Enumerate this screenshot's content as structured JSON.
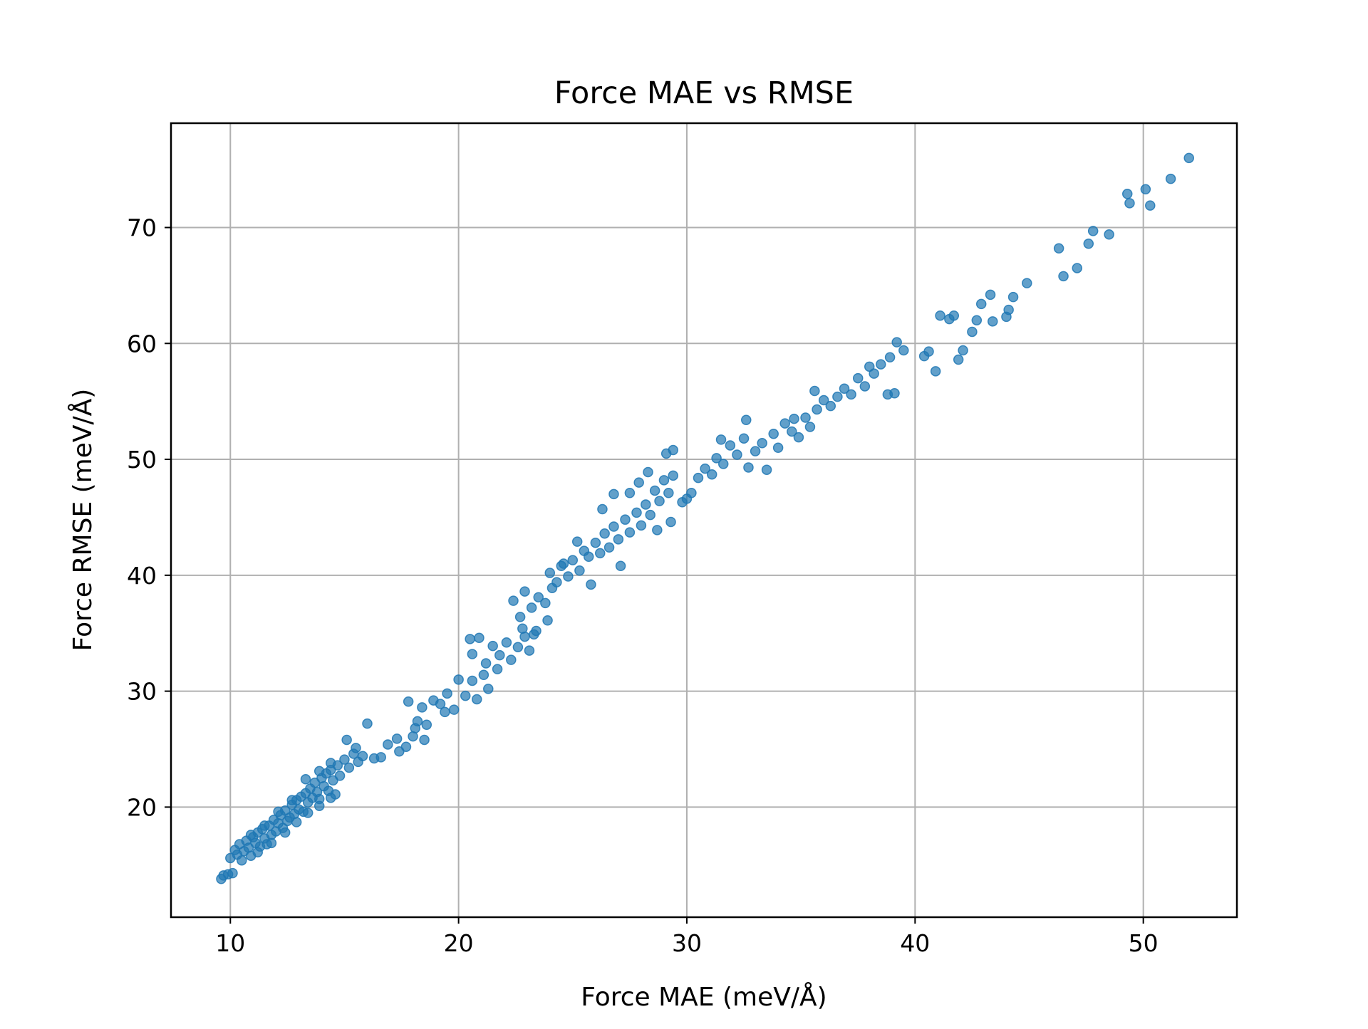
{
  "chart_data": {
    "type": "scatter",
    "title": "Force MAE vs RMSE",
    "xlabel": "Force MAE (meV/Å)",
    "ylabel": "Force RMSE (meV/Å)",
    "xlim": [
      7.4,
      54.1
    ],
    "ylim": [
      10.5,
      79
    ],
    "xticks": [
      10,
      20,
      30,
      40,
      50
    ],
    "yticks": [
      20,
      30,
      40,
      50,
      60,
      70
    ],
    "grid": true,
    "marker_color": "#1f77b4",
    "marker_alpha": 0.7,
    "series": [
      {
        "points": [
          [
            9.6,
            13.8
          ],
          [
            9.7,
            14.1
          ],
          [
            9.9,
            14.2
          ],
          [
            10.1,
            14.3
          ],
          [
            10.0,
            15.6
          ],
          [
            10.2,
            16.3
          ],
          [
            10.3,
            15.9
          ],
          [
            10.4,
            16.8
          ],
          [
            10.5,
            15.4
          ],
          [
            10.6,
            16.2
          ],
          [
            10.7,
            17.1
          ],
          [
            10.8,
            16.5
          ],
          [
            10.9,
            15.8
          ],
          [
            11.0,
            17.4
          ],
          [
            11.1,
            16.9
          ],
          [
            11.2,
            17.8
          ],
          [
            11.3,
            16.6
          ],
          [
            11.4,
            18.1
          ],
          [
            11.5,
            17.3
          ],
          [
            11.6,
            16.8
          ],
          [
            11.7,
            18.4
          ],
          [
            11.8,
            17.6
          ],
          [
            11.9,
            18.9
          ],
          [
            12.0,
            17.9
          ],
          [
            12.1,
            18.6
          ],
          [
            12.2,
            19.3
          ],
          [
            12.3,
            18.2
          ],
          [
            12.4,
            19.7
          ],
          [
            12.5,
            18.8
          ],
          [
            12.6,
            19.1
          ],
          [
            12.7,
            20.2
          ],
          [
            12.8,
            19.4
          ],
          [
            12.9,
            20.6
          ],
          [
            13.0,
            19.8
          ],
          [
            13.1,
            20.9
          ],
          [
            13.2,
            19.6
          ],
          [
            13.3,
            21.2
          ],
          [
            13.4,
            20.4
          ],
          [
            13.5,
            21.6
          ],
          [
            13.6,
            20.8
          ],
          [
            13.7,
            22.1
          ],
          [
            13.8,
            21.3
          ],
          [
            13.9,
            20.7
          ],
          [
            14.0,
            22.5
          ],
          [
            14.1,
            21.8
          ],
          [
            14.2,
            22.9
          ],
          [
            14.3,
            21.4
          ],
          [
            14.4,
            23.2
          ],
          [
            14.5,
            22.3
          ],
          [
            14.6,
            21.1
          ],
          [
            14.7,
            23.6
          ],
          [
            14.8,
            22.7
          ],
          [
            15.0,
            24.1
          ],
          [
            15.2,
            23.4
          ],
          [
            15.4,
            24.6
          ],
          [
            15.6,
            23.9
          ],
          [
            15.8,
            24.4
          ],
          [
            11.2,
            16.1
          ],
          [
            11.8,
            16.9
          ],
          [
            12.4,
            17.8
          ],
          [
            12.9,
            18.7
          ],
          [
            13.4,
            19.5
          ],
          [
            13.9,
            20.1
          ],
          [
            14.4,
            20.8
          ],
          [
            10.9,
            17.6
          ],
          [
            11.5,
            18.4
          ],
          [
            12.1,
            19.6
          ],
          [
            12.7,
            20.6
          ],
          [
            13.3,
            22.4
          ],
          [
            13.9,
            23.1
          ],
          [
            14.4,
            23.8
          ],
          [
            16.0,
            27.2
          ],
          [
            15.1,
            25.8
          ],
          [
            15.5,
            25.1
          ],
          [
            16.3,
            24.2
          ],
          [
            16.9,
            25.4
          ],
          [
            17.3,
            25.9
          ],
          [
            17.7,
            25.2
          ],
          [
            18.0,
            26.1
          ],
          [
            18.2,
            27.4
          ],
          [
            18.4,
            28.6
          ],
          [
            18.6,
            27.1
          ],
          [
            18.9,
            29.2
          ],
          [
            17.8,
            29.1
          ],
          [
            18.1,
            26.8
          ],
          [
            18.5,
            25.8
          ],
          [
            19.2,
            28.9
          ],
          [
            19.5,
            29.8
          ],
          [
            19.8,
            28.4
          ],
          [
            20.0,
            31.0
          ],
          [
            20.3,
            29.6
          ],
          [
            20.6,
            30.9
          ],
          [
            20.8,
            29.3
          ],
          [
            21.1,
            31.4
          ],
          [
            21.3,
            30.2
          ],
          [
            20.5,
            34.5
          ],
          [
            20.9,
            34.6
          ],
          [
            20.6,
            33.2
          ],
          [
            21.2,
            32.4
          ],
          [
            21.5,
            33.9
          ],
          [
            21.8,
            33.1
          ],
          [
            22.1,
            34.2
          ],
          [
            22.3,
            32.7
          ],
          [
            22.6,
            33.8
          ],
          [
            22.9,
            34.7
          ],
          [
            23.1,
            33.5
          ],
          [
            23.3,
            34.9
          ],
          [
            22.4,
            37.8
          ],
          [
            22.7,
            36.4
          ],
          [
            22.9,
            38.6
          ],
          [
            23.2,
            37.2
          ],
          [
            23.5,
            38.1
          ],
          [
            23.8,
            37.6
          ],
          [
            24.0,
            40.2
          ],
          [
            24.3,
            39.4
          ],
          [
            24.5,
            40.8
          ],
          [
            24.8,
            39.9
          ],
          [
            25.0,
            41.3
          ],
          [
            25.3,
            40.4
          ],
          [
            25.5,
            42.1
          ],
          [
            25.7,
            41.6
          ],
          [
            26.0,
            42.8
          ],
          [
            26.2,
            41.9
          ],
          [
            26.4,
            43.6
          ],
          [
            26.6,
            42.4
          ],
          [
            26.8,
            44.2
          ],
          [
            27.0,
            43.1
          ],
          [
            27.3,
            44.8
          ],
          [
            27.5,
            43.7
          ],
          [
            27.8,
            45.4
          ],
          [
            28.0,
            44.3
          ],
          [
            28.2,
            46.1
          ],
          [
            28.4,
            45.2
          ],
          [
            28.6,
            47.3
          ],
          [
            28.8,
            46.4
          ],
          [
            29.0,
            48.2
          ],
          [
            29.2,
            47.1
          ],
          [
            29.4,
            48.6
          ],
          [
            28.7,
            43.9
          ],
          [
            29.3,
            44.6
          ],
          [
            26.3,
            45.7
          ],
          [
            26.8,
            47.0
          ],
          [
            27.9,
            48.0
          ],
          [
            28.3,
            48.9
          ],
          [
            29.1,
            50.5
          ],
          [
            29.4,
            50.8
          ],
          [
            27.1,
            40.8
          ],
          [
            25.8,
            39.2
          ],
          [
            24.1,
            38.9
          ],
          [
            23.9,
            36.1
          ],
          [
            23.4,
            35.2
          ],
          [
            22.8,
            35.4
          ],
          [
            29.8,
            46.3
          ],
          [
            30.2,
            47.1
          ],
          [
            30.5,
            48.4
          ],
          [
            30.8,
            49.2
          ],
          [
            31.1,
            48.7
          ],
          [
            31.3,
            50.1
          ],
          [
            31.6,
            49.6
          ],
          [
            31.9,
            51.2
          ],
          [
            32.2,
            50.4
          ],
          [
            32.5,
            51.8
          ],
          [
            32.7,
            49.3
          ],
          [
            33.0,
            50.7
          ],
          [
            33.3,
            51.4
          ],
          [
            33.5,
            49.1
          ],
          [
            33.8,
            52.2
          ],
          [
            34.0,
            51.0
          ],
          [
            34.3,
            53.1
          ],
          [
            34.6,
            52.4
          ],
          [
            34.9,
            51.9
          ],
          [
            35.2,
            53.6
          ],
          [
            35.4,
            52.8
          ],
          [
            35.7,
            54.3
          ],
          [
            36.0,
            55.1
          ],
          [
            36.3,
            54.6
          ],
          [
            36.6,
            55.4
          ],
          [
            36.9,
            56.1
          ],
          [
            37.2,
            55.6
          ],
          [
            37.5,
            57.0
          ],
          [
            37.8,
            56.3
          ],
          [
            38.0,
            58.0
          ],
          [
            38.2,
            57.4
          ],
          [
            38.5,
            58.2
          ],
          [
            38.8,
            55.6
          ],
          [
            39.1,
            55.7
          ],
          [
            38.9,
            58.8
          ],
          [
            39.2,
            60.1
          ],
          [
            39.5,
            59.4
          ],
          [
            40.4,
            58.9
          ],
          [
            40.6,
            59.3
          ],
          [
            40.9,
            57.6
          ],
          [
            41.1,
            62.4
          ],
          [
            41.5,
            62.1
          ],
          [
            41.7,
            62.4
          ],
          [
            41.9,
            58.6
          ],
          [
            42.1,
            59.4
          ],
          [
            42.5,
            61.0
          ],
          [
            42.7,
            62.0
          ],
          [
            42.9,
            63.4
          ],
          [
            43.3,
            64.2
          ],
          [
            43.4,
            61.9
          ],
          [
            44.0,
            62.3
          ],
          [
            44.1,
            62.9
          ],
          [
            44.3,
            64.0
          ],
          [
            44.9,
            65.2
          ],
          [
            46.3,
            68.2
          ],
          [
            46.5,
            65.8
          ],
          [
            47.1,
            66.5
          ],
          [
            47.6,
            68.6
          ],
          [
            47.8,
            69.7
          ],
          [
            48.5,
            69.4
          ],
          [
            49.3,
            72.9
          ],
          [
            49.4,
            72.1
          ],
          [
            50.1,
            73.3
          ],
          [
            50.3,
            71.9
          ],
          [
            51.2,
            74.2
          ],
          [
            52.0,
            76.0
          ],
          [
            32.6,
            53.4
          ],
          [
            30.0,
            46.6
          ],
          [
            31.5,
            51.7
          ],
          [
            34.7,
            53.5
          ],
          [
            35.6,
            55.9
          ],
          [
            27.5,
            47.1
          ],
          [
            25.2,
            42.9
          ],
          [
            24.6,
            41.0
          ],
          [
            21.7,
            31.9
          ],
          [
            19.4,
            28.2
          ],
          [
            17.4,
            24.8
          ],
          [
            16.6,
            24.3
          ]
        ]
      }
    ]
  }
}
